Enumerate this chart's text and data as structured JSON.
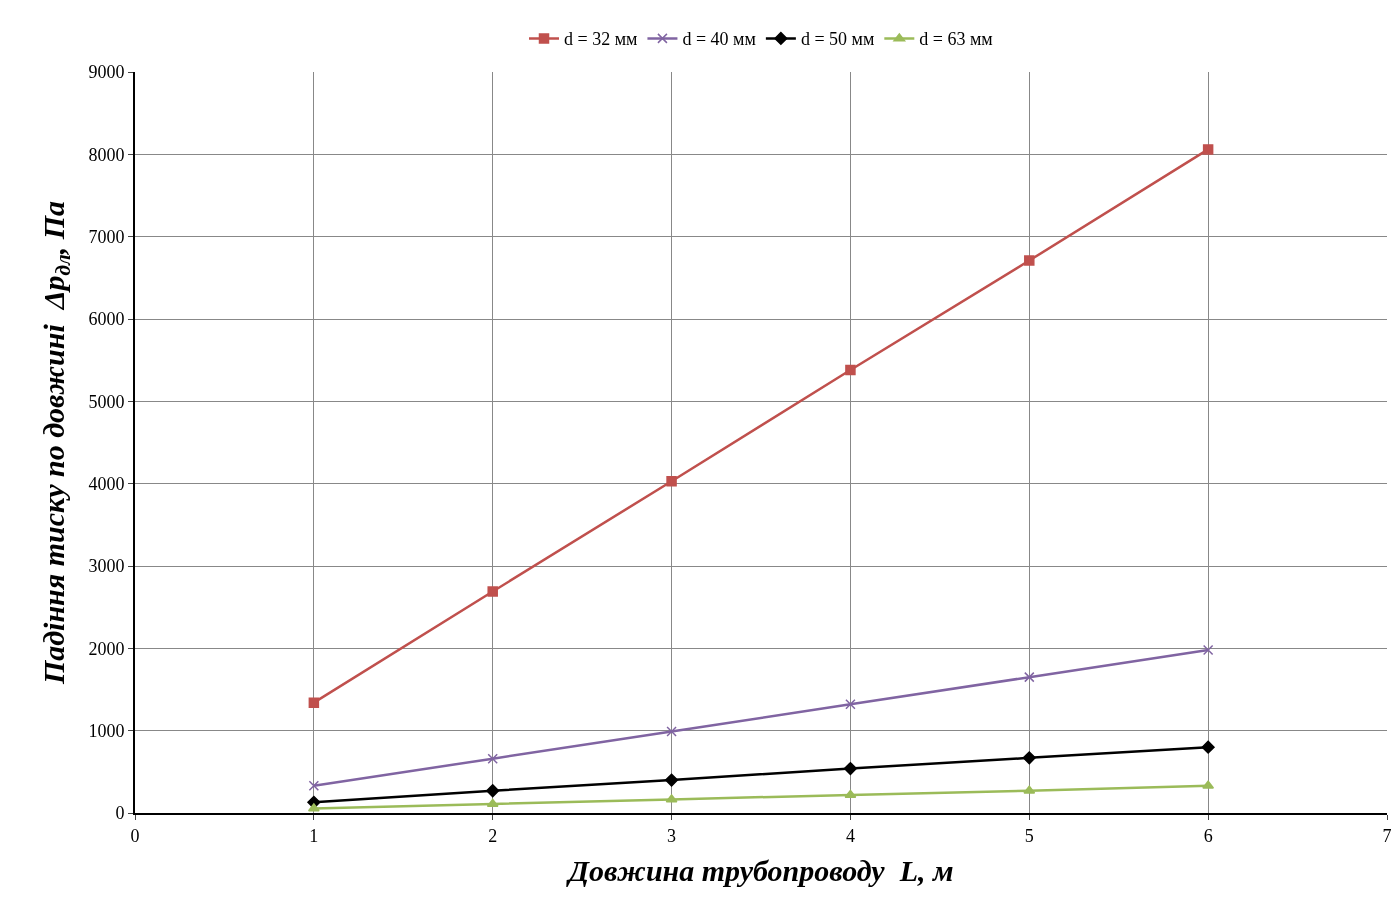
{
  "chart_data": {
    "type": "line",
    "xlabel": "Довжина трубопроводу  L, м",
    "ylabel": "Падіння тиску по довжині  Δp$_{дл}$, Па",
    "x": [
      1,
      2,
      3,
      4,
      5,
      6
    ],
    "series": [
      {
        "name": "d = 32 мм",
        "color": "#c0504d",
        "marker": "square",
        "values": [
          1340,
          2690,
          4030,
          5380,
          6710,
          8060
        ]
      },
      {
        "name": "d = 40 мм",
        "color": "#8064a2",
        "marker": "cross",
        "values": [
          330,
          660,
          990,
          1320,
          1650,
          1980
        ]
      },
      {
        "name": "d = 50 мм",
        "color": "#000000",
        "marker": "diamond",
        "values": [
          130,
          270,
          400,
          540,
          670,
          800
        ]
      },
      {
        "name": "d = 63 мм",
        "color": "#9bbb59",
        "marker": "triangle",
        "values": [
          55,
          110,
          165,
          220,
          270,
          330
        ]
      }
    ],
    "xlim": [
      0,
      7
    ],
    "xticks": [
      0,
      1,
      2,
      3,
      4,
      5,
      6,
      7
    ],
    "ylim": [
      0,
      9000
    ],
    "yticks": [
      0,
      1000,
      2000,
      3000,
      4000,
      5000,
      6000,
      7000,
      8000,
      9000
    ],
    "grid": true,
    "legend": "top",
    "line_style": "solid"
  }
}
